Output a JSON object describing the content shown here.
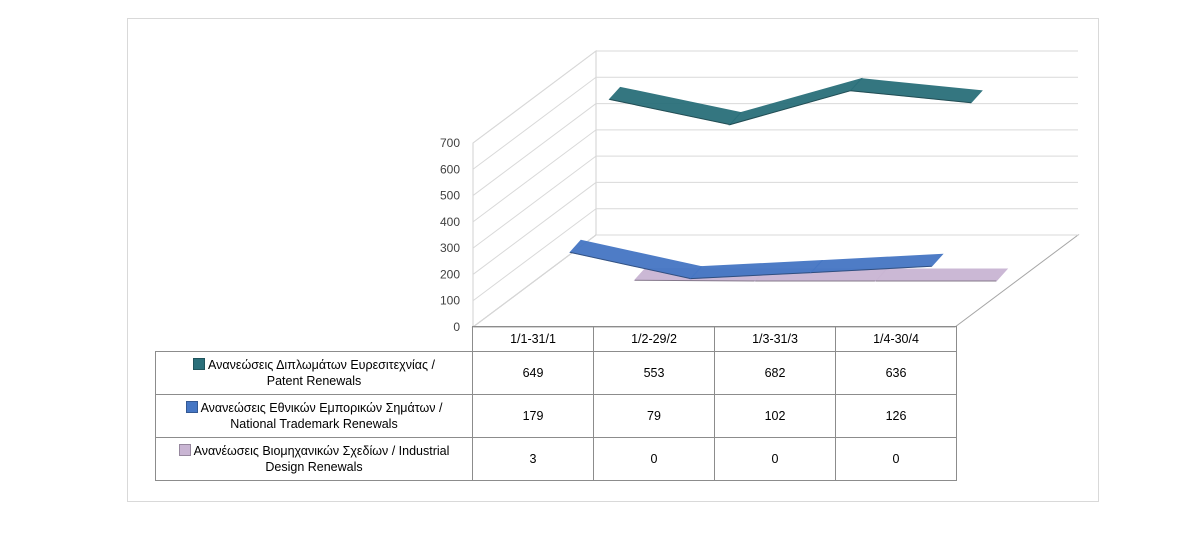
{
  "chart_data": {
    "type": "line",
    "style": "3d-ribbon",
    "categories": [
      "1/1-31/1",
      "1/2-29/2",
      "1/3-31/3",
      "1/4-30/4"
    ],
    "y_ticks": [
      "0",
      "100",
      "200",
      "300",
      "400",
      "500",
      "600",
      "700"
    ],
    "ylim": [
      0,
      700
    ],
    "grid": true,
    "legend_placement": "data-table",
    "series": [
      {
        "name": "Ανανεώσεις Διπλωμάτων Ευρεσιτεχνίας  / Patent Renewals",
        "name_lines": [
          "Ανανεώσεις Διπλωμάτων Ευρεσιτεχνίας  /",
          "Patent Renewals"
        ],
        "values": [
          649,
          553,
          682,
          636
        ],
        "color": "#2a6f7a"
      },
      {
        "name": "Ανανεώσεις Εθνικών Εμπορικών Σημάτων / National Trademark Renewals",
        "name_lines": [
          "Ανανεώσεις Εθνικών Εμπορικών Σημάτων /",
          "National Trademark Renewals"
        ],
        "values": [
          179,
          79,
          102,
          126
        ],
        "color": "#4576c4"
      },
      {
        "name": "Ανανέωσεις Βιομηχανικών Σχεδίων / Industrial Design Renewals",
        "name_lines": [
          "Ανανέωσεις Βιομηχανικών Σχεδίων / Industrial",
          "Design Renewals"
        ],
        "values": [
          3,
          0,
          0,
          0
        ],
        "color": "#c9b5d3"
      }
    ],
    "table_values": [
      [
        "649",
        "553",
        "682",
        "636"
      ],
      [
        "179",
        "79",
        "102",
        "126"
      ],
      [
        "3",
        "0",
        "0",
        "0"
      ]
    ]
  }
}
